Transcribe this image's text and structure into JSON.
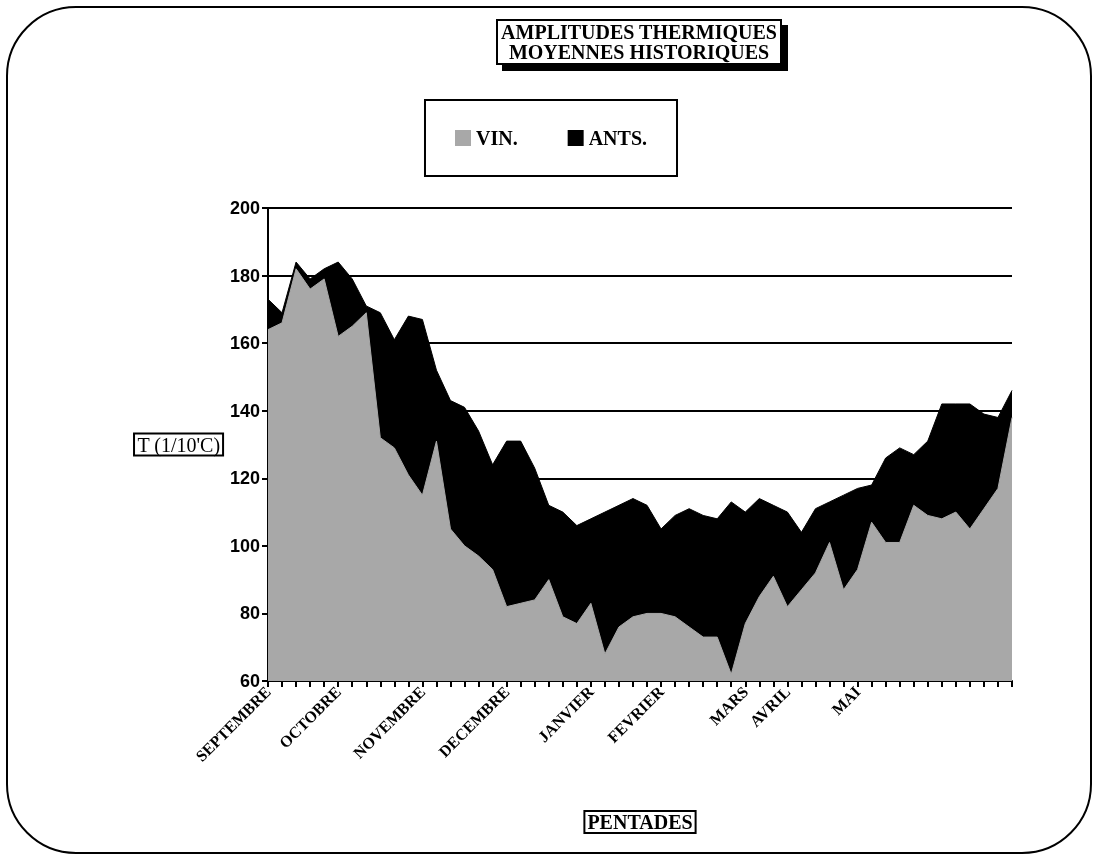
{
  "chart_data": {
    "type": "area",
    "title": "AMPLITUDES THERMIQUES\nMOYENNES HISTORIQUES",
    "xlabel": "PENTADES",
    "ylabel": "T (1/10'C)",
    "categories": [
      "SEPTEMBRE",
      null,
      null,
      null,
      null,
      "OCTOBRE",
      null,
      null,
      null,
      null,
      null,
      "NOVEMBRE",
      null,
      null,
      null,
      null,
      null,
      "DECEMBRE",
      null,
      null,
      null,
      null,
      null,
      "JANVIER",
      null,
      null,
      null,
      null,
      "FEVRIER",
      null,
      null,
      null,
      null,
      null,
      "MARS",
      null,
      null,
      "AVRIL",
      null,
      null,
      null,
      null,
      "MAI",
      null,
      null,
      null,
      null,
      null,
      null,
      null,
      null,
      null,
      null,
      null
    ],
    "series": [
      {
        "name": "VIN.",
        "color": "#a8a8a8",
        "values": [
          164,
          166,
          182,
          176,
          179,
          162,
          165,
          169,
          132,
          129,
          121,
          115,
          131,
          105,
          100,
          97,
          93,
          82,
          83,
          84,
          90,
          79,
          77,
          83,
          68,
          76,
          79,
          80,
          80,
          79,
          76,
          73,
          73,
          62,
          77,
          85,
          91,
          82,
          87,
          92,
          101,
          87,
          93,
          107,
          101,
          101,
          112,
          109,
          108,
          110,
          105,
          111,
          117,
          138
        ]
      },
      {
        "name": "ANTS.",
        "color": "#000000",
        "values": [
          173,
          169,
          184,
          179,
          182,
          184,
          179,
          171,
          169,
          161,
          168,
          167,
          152,
          143,
          141,
          134,
          124,
          131,
          131,
          123,
          112,
          110,
          106,
          108,
          110,
          112,
          114,
          112,
          105,
          109,
          111,
          109,
          108,
          113,
          110,
          114,
          112,
          110,
          104,
          111,
          113,
          115,
          117,
          118,
          126,
          129,
          127,
          131,
          142,
          142,
          142,
          139,
          138,
          146
        ]
      }
    ],
    "ylim": [
      60,
      200
    ],
    "yticks": [
      60,
      80,
      100,
      120,
      140,
      160,
      180,
      200
    ],
    "grid": "y",
    "legend": "top"
  }
}
